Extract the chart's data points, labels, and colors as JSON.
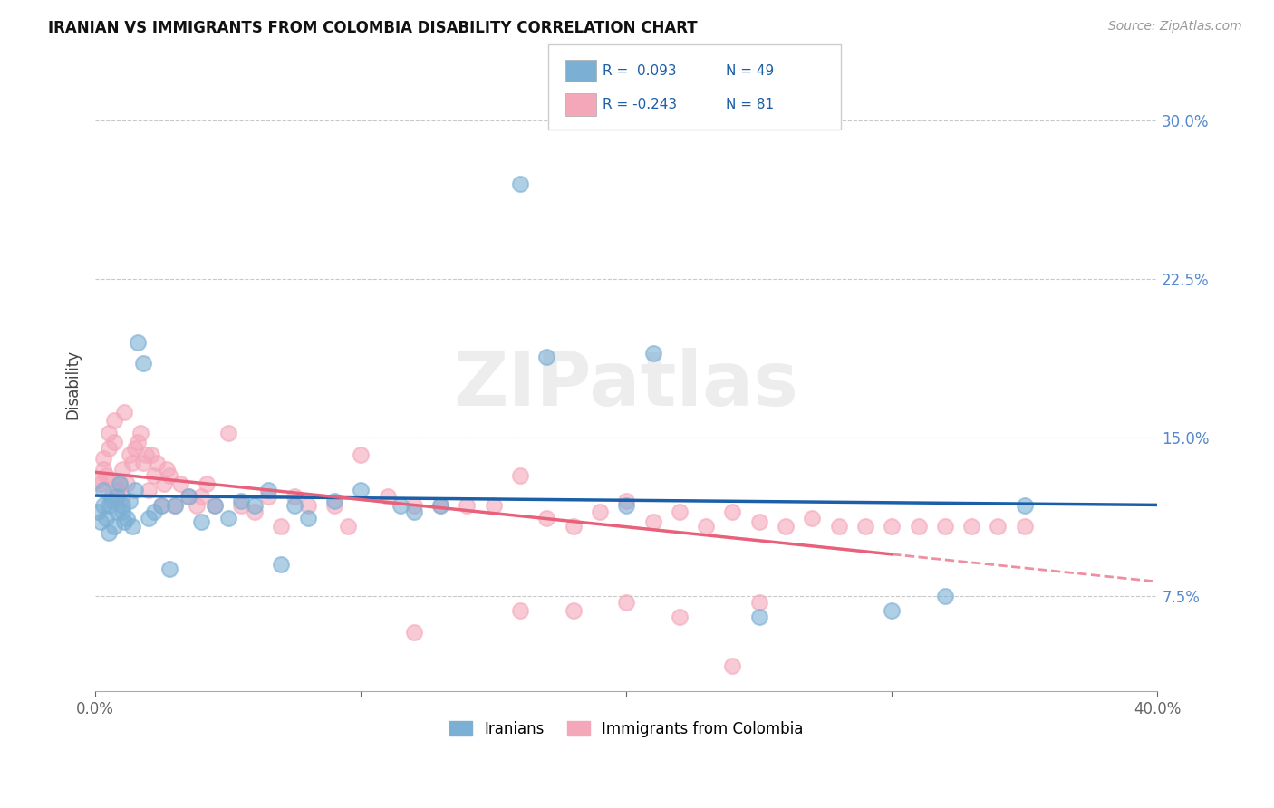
{
  "title": "IRANIAN VS IMMIGRANTS FROM COLOMBIA DISABILITY CORRELATION CHART",
  "source": "Source: ZipAtlas.com",
  "ylabel": "Disability",
  "xlim": [
    0.0,
    0.4
  ],
  "ylim": [
    0.03,
    0.32
  ],
  "yticks": [
    0.075,
    0.15,
    0.225,
    0.3
  ],
  "ytick_labels": [
    "7.5%",
    "15.0%",
    "22.5%",
    "30.0%"
  ],
  "xticks": [
    0.0,
    0.1,
    0.2,
    0.3,
    0.4
  ],
  "xtick_labels": [
    "0.0%",
    "",
    "",
    "",
    "40.0%"
  ],
  "watermark": "ZIPatlas",
  "color_iranians": "#7bafd4",
  "color_colombia": "#f4a7b9",
  "color_line_iranians": "#1a5fa8",
  "color_line_colombia": "#e8607a",
  "iranians_x": [
    0.001,
    0.002,
    0.003,
    0.003,
    0.004,
    0.005,
    0.005,
    0.006,
    0.007,
    0.008,
    0.008,
    0.009,
    0.01,
    0.01,
    0.011,
    0.012,
    0.013,
    0.014,
    0.015,
    0.016,
    0.018,
    0.02,
    0.022,
    0.025,
    0.028,
    0.03,
    0.035,
    0.04,
    0.045,
    0.05,
    0.055,
    0.06,
    0.065,
    0.07,
    0.075,
    0.08,
    0.09,
    0.1,
    0.115,
    0.12,
    0.13,
    0.16,
    0.17,
    0.2,
    0.21,
    0.25,
    0.3,
    0.32,
    0.35
  ],
  "iranians_y": [
    0.115,
    0.11,
    0.118,
    0.125,
    0.112,
    0.105,
    0.118,
    0.12,
    0.108,
    0.115,
    0.122,
    0.128,
    0.115,
    0.118,
    0.11,
    0.112,
    0.12,
    0.108,
    0.125,
    0.195,
    0.185,
    0.112,
    0.115,
    0.118,
    0.088,
    0.118,
    0.122,
    0.11,
    0.118,
    0.112,
    0.12,
    0.118,
    0.125,
    0.09,
    0.118,
    0.112,
    0.12,
    0.125,
    0.118,
    0.115,
    0.118,
    0.27,
    0.188,
    0.118,
    0.19,
    0.065,
    0.068,
    0.075,
    0.118
  ],
  "colombia_x": [
    0.001,
    0.002,
    0.003,
    0.003,
    0.004,
    0.005,
    0.005,
    0.006,
    0.006,
    0.007,
    0.007,
    0.008,
    0.009,
    0.01,
    0.01,
    0.011,
    0.012,
    0.013,
    0.014,
    0.015,
    0.016,
    0.017,
    0.018,
    0.019,
    0.02,
    0.021,
    0.022,
    0.023,
    0.025,
    0.026,
    0.027,
    0.028,
    0.03,
    0.032,
    0.035,
    0.038,
    0.04,
    0.042,
    0.045,
    0.05,
    0.055,
    0.06,
    0.065,
    0.07,
    0.075,
    0.08,
    0.09,
    0.095,
    0.1,
    0.11,
    0.12,
    0.13,
    0.14,
    0.15,
    0.16,
    0.17,
    0.18,
    0.19,
    0.2,
    0.21,
    0.22,
    0.23,
    0.24,
    0.25,
    0.26,
    0.27,
    0.28,
    0.29,
    0.3,
    0.31,
    0.32,
    0.33,
    0.34,
    0.35,
    0.2,
    0.25,
    0.12,
    0.16,
    0.18,
    0.22,
    0.24
  ],
  "colombia_y": [
    0.13,
    0.128,
    0.135,
    0.14,
    0.132,
    0.145,
    0.152,
    0.122,
    0.13,
    0.148,
    0.158,
    0.125,
    0.128,
    0.135,
    0.122,
    0.162,
    0.128,
    0.142,
    0.138,
    0.145,
    0.148,
    0.152,
    0.138,
    0.142,
    0.125,
    0.142,
    0.132,
    0.138,
    0.118,
    0.128,
    0.135,
    0.132,
    0.118,
    0.128,
    0.122,
    0.118,
    0.122,
    0.128,
    0.118,
    0.152,
    0.118,
    0.115,
    0.122,
    0.108,
    0.122,
    0.118,
    0.118,
    0.108,
    0.142,
    0.122,
    0.118,
    0.118,
    0.118,
    0.118,
    0.132,
    0.112,
    0.108,
    0.115,
    0.12,
    0.11,
    0.115,
    0.108,
    0.115,
    0.11,
    0.108,
    0.112,
    0.108,
    0.108,
    0.108,
    0.108,
    0.108,
    0.108,
    0.108,
    0.108,
    0.072,
    0.072,
    0.058,
    0.068,
    0.068,
    0.065,
    0.042
  ]
}
